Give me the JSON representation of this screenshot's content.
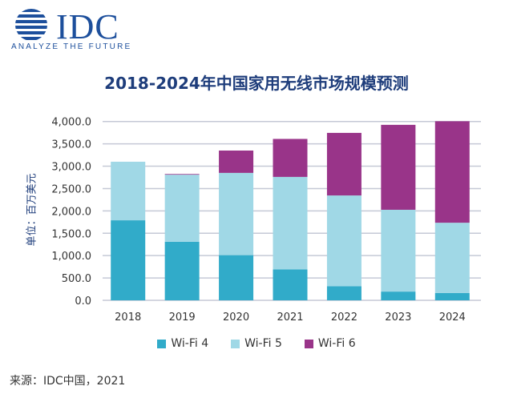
{
  "logo": {
    "text": "IDC",
    "tagline": "ANALYZE THE FUTURE"
  },
  "source": "来源：IDC中国，2021",
  "colors": {
    "wifi4": "#31abc9",
    "wifi5": "#a0d8e6",
    "wifi6": "#993489",
    "brand": "#1d4f9c"
  },
  "chart_data": {
    "type": "bar",
    "stacked": true,
    "title": "2018-2024年中国家用无线市场规模预测",
    "ylabel": "单位：百万美元",
    "xlabel": "",
    "ylim": [
      0,
      4000
    ],
    "yticks": [
      "0.0",
      "500.0",
      "1,000.0",
      "1,500.0",
      "2,000.0",
      "2,500.0",
      "3,000.0",
      "3,500.0",
      "4,000.0"
    ],
    "grid": true,
    "legend_position": "bottom",
    "categories": [
      "2018",
      "2019",
      "2020",
      "2021",
      "2022",
      "2023",
      "2024"
    ],
    "series": [
      {
        "name": "Wi-Fi 4",
        "color": "#31abc9",
        "values": [
          1790,
          1310,
          1010,
          690,
          315,
          195,
          165
        ]
      },
      {
        "name": "Wi-Fi 5",
        "color": "#a0d8e6",
        "values": [
          1310,
          1500,
          1840,
          2070,
          2030,
          1830,
          1570
        ]
      },
      {
        "name": "Wi-Fi 6",
        "color": "#993489",
        "values": [
          0,
          15,
          500,
          850,
          1400,
          1900,
          2270
        ]
      }
    ]
  }
}
